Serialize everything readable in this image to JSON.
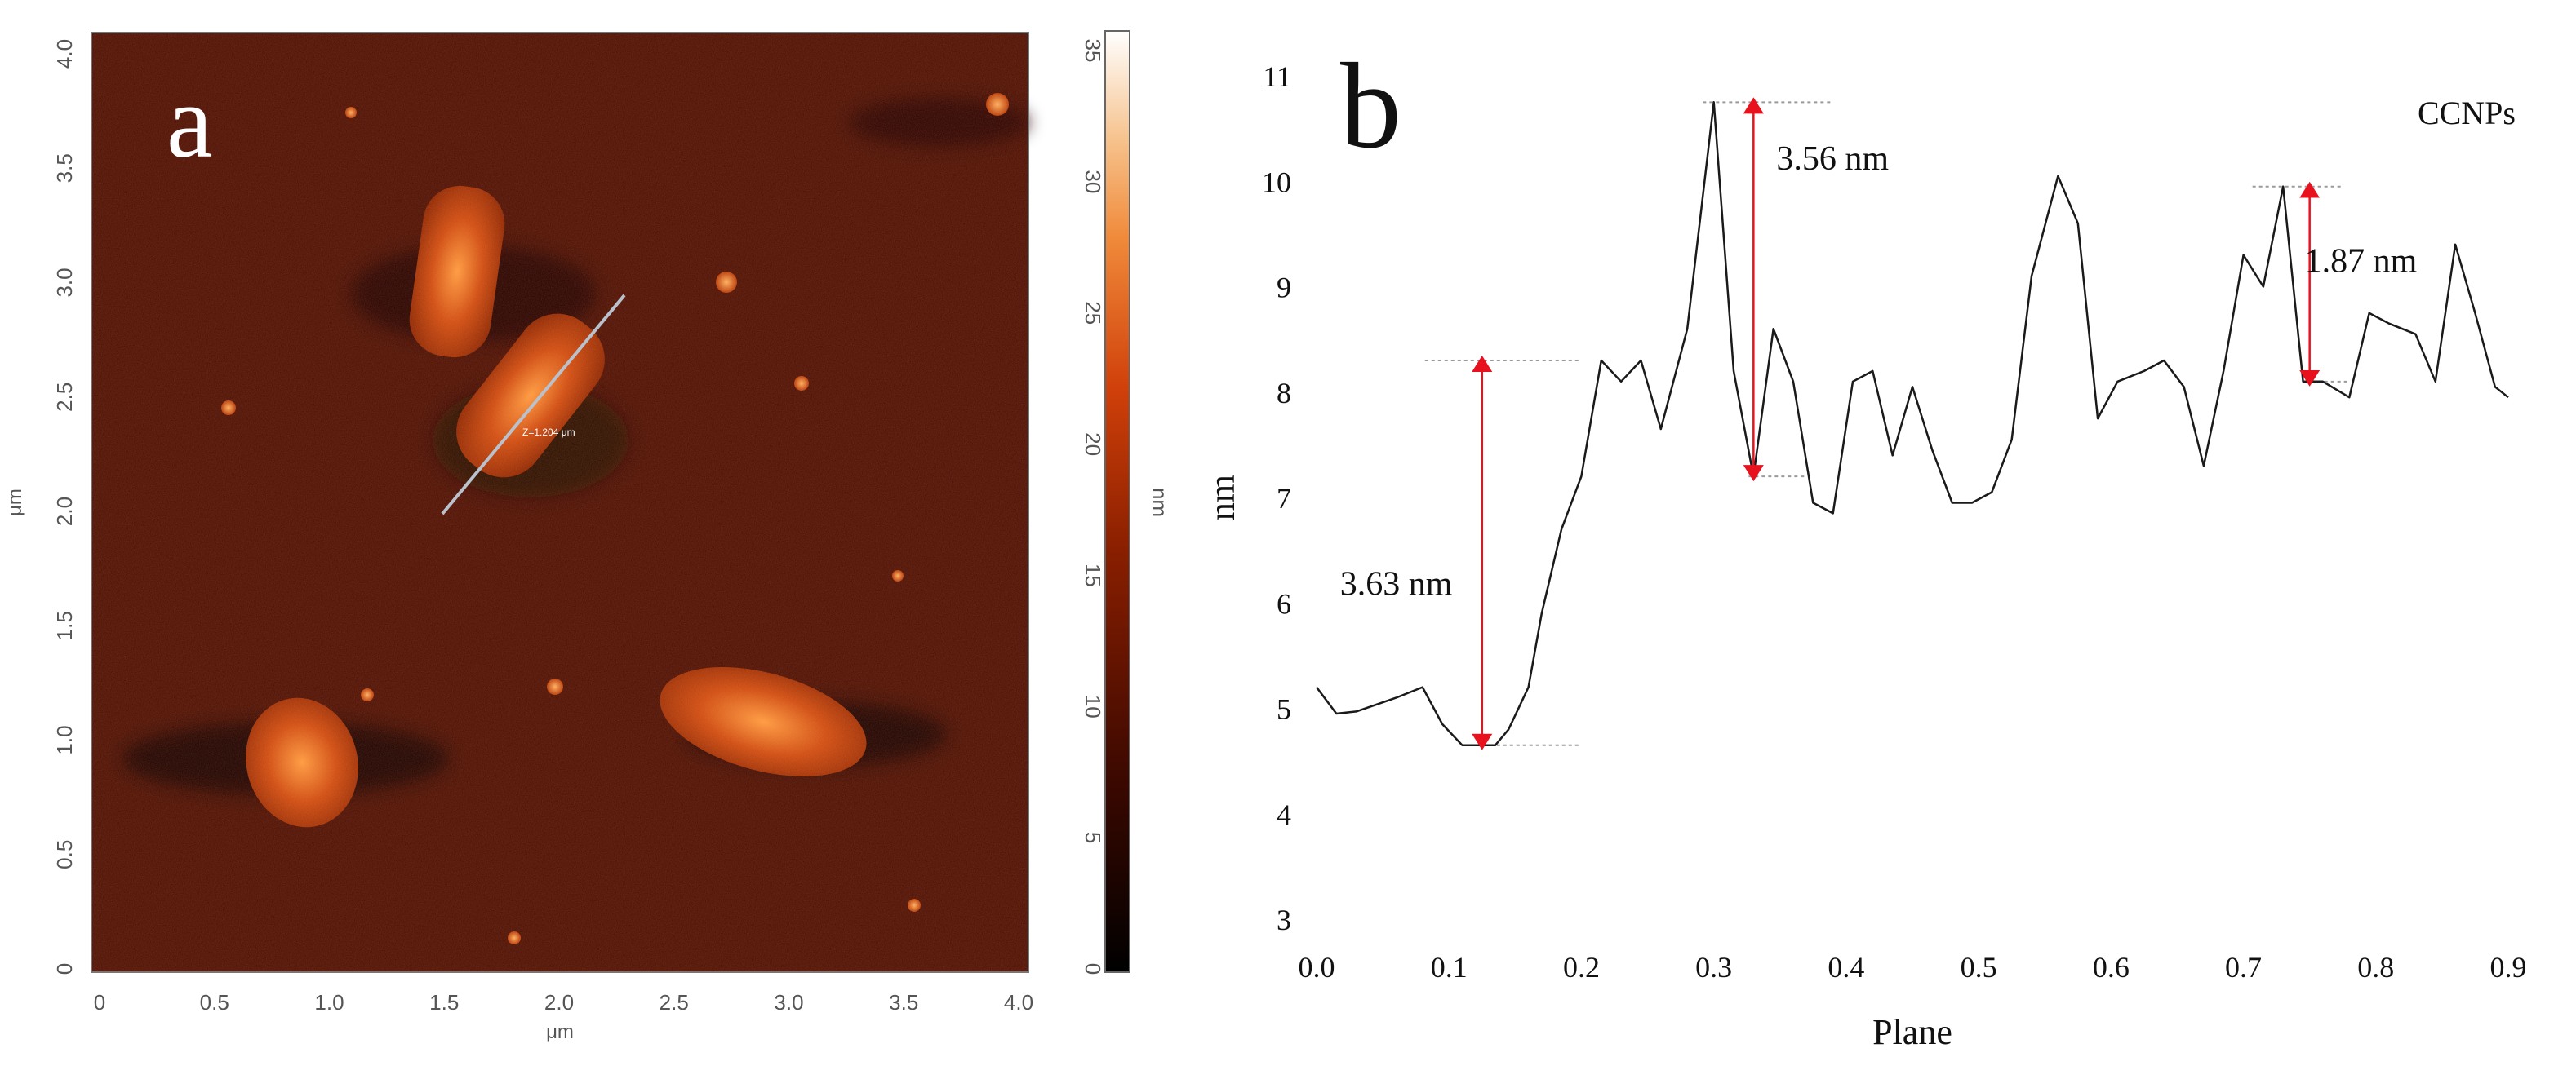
{
  "panel_a": {
    "label": "a",
    "x_ticks": [
      "0",
      "0.5",
      "1.0",
      "1.5",
      "2.0",
      "2.5",
      "3.0",
      "3.5",
      "4.0"
    ],
    "y_ticks": [
      "0",
      "0.5",
      "1.0",
      "1.5",
      "2.0",
      "2.5",
      "3.0",
      "3.5",
      "4.0"
    ],
    "x_unit": "μm",
    "y_unit": "μm",
    "line_annotation": "Z=1.204 μm",
    "colorbar_ticks": [
      "0",
      "5",
      "10",
      "15",
      "20",
      "25",
      "30",
      "35"
    ],
    "colorbar_unit": "nm",
    "colors": {
      "background": "#4a0c02",
      "dark": "#160300",
      "particle": "#c8420f",
      "highlight": "#ffb060"
    }
  },
  "chart_data": {
    "type": "line",
    "panel_label": "b",
    "title": "",
    "xlabel": "Plane",
    "ylabel": "nm",
    "legend_text": "CCNPs",
    "xlim": [
      0.0,
      0.9
    ],
    "ylim": [
      3,
      11
    ],
    "x_ticks": [
      "0.0",
      "0.1",
      "0.2",
      "0.3",
      "0.4",
      "0.5",
      "0.6",
      "0.7",
      "0.8",
      "0.9"
    ],
    "y_ticks": [
      "3",
      "4",
      "5",
      "6",
      "7",
      "8",
      "9",
      "10",
      "11"
    ],
    "series": [
      {
        "x": [
          0.0,
          0.015,
          0.03,
          0.06,
          0.08,
          0.095,
          0.11,
          0.135,
          0.145,
          0.16,
          0.17,
          0.185,
          0.2,
          0.215,
          0.23,
          0.245,
          0.26,
          0.28,
          0.3,
          0.315,
          0.33,
          0.345,
          0.36,
          0.375,
          0.39,
          0.405,
          0.42,
          0.435,
          0.45,
          0.465,
          0.48,
          0.495,
          0.51,
          0.525,
          0.54,
          0.56,
          0.575,
          0.59,
          0.605,
          0.625,
          0.64,
          0.655,
          0.67,
          0.685,
          0.7,
          0.715,
          0.73,
          0.745,
          0.76,
          0.78,
          0.795,
          0.81,
          0.83,
          0.845,
          0.86,
          0.875,
          0.89,
          0.9
        ],
        "y": [
          5.2,
          4.95,
          4.97,
          5.1,
          5.2,
          4.85,
          4.65,
          4.65,
          4.8,
          5.2,
          5.9,
          6.7,
          7.2,
          8.3,
          8.1,
          8.3,
          7.65,
          8.6,
          10.75,
          8.2,
          7.2,
          8.6,
          8.1,
          6.95,
          6.85,
          8.1,
          8.2,
          7.4,
          8.05,
          7.45,
          6.95,
          6.95,
          7.05,
          7.55,
          9.1,
          10.05,
          9.6,
          7.75,
          8.1,
          8.2,
          8.3,
          8.05,
          7.3,
          8.2,
          9.3,
          9.0,
          9.95,
          8.1,
          8.1,
          7.95,
          8.75,
          8.65,
          8.55,
          8.1,
          9.4,
          8.75,
          8.05,
          7.95
        ]
      }
    ],
    "annotations": [
      {
        "text": "3.63 nm",
        "x": 0.125,
        "y_low": 4.65,
        "y_high": 8.3
      },
      {
        "text": "3.56 nm",
        "x": 0.33,
        "y_low": 7.2,
        "y_high": 10.75
      },
      {
        "text": "1.87 nm",
        "x": 0.75,
        "y_low": 8.1,
        "y_high": 9.95
      }
    ],
    "colors": {
      "line": "#1a1a1a",
      "arrow": "#e8121f",
      "guide": "#9a9a9a"
    }
  }
}
